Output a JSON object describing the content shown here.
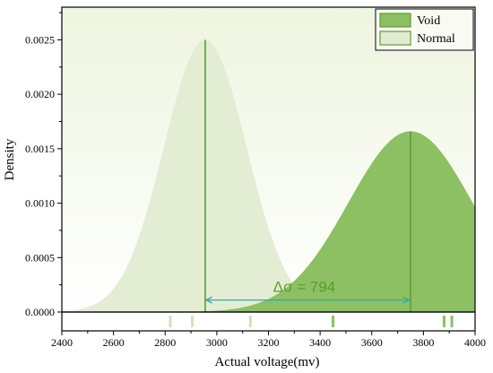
{
  "chart_data": {
    "type": "area",
    "xlabel": "Actual voltage(mv)",
    "ylabel": "Density",
    "xlim": [
      2400,
      4000
    ],
    "ylim": [
      0,
      0.0028
    ],
    "x_ticks": [
      2400,
      2600,
      2800,
      3000,
      3200,
      3400,
      3600,
      3800,
      4000
    ],
    "x_tick_labels": [
      "2400",
      "2600",
      "2800",
      "3000",
      "3200",
      "3400",
      "3600",
      "3800",
      "4000"
    ],
    "y_ticks": [
      0,
      0.0005,
      0.001,
      0.0015,
      0.002,
      0.0025
    ],
    "y_tick_labels": [
      "0.0000",
      "0.0005",
      "0.0010",
      "0.0015",
      "0.0020",
      "0.0025"
    ],
    "legend_position": "top-right",
    "series": [
      {
        "name": "Void",
        "distribution": "normal",
        "mean": 3750,
        "std": 240,
        "peak_density": 0.00166,
        "color": "#8cc063",
        "rug": [
          3450,
          3880,
          3910
        ]
      },
      {
        "name": "Normal",
        "distribution": "normal",
        "mean": 2955,
        "std": 160,
        "peak_density": 0.0025,
        "color": "#dfebcc",
        "rug": [
          2820,
          2905,
          3130
        ]
      }
    ],
    "annotations": [
      {
        "text": "Δσ = 794",
        "from_x": 2955,
        "to_x": 3750,
        "y": 0.00011
      }
    ],
    "colors": {
      "background_gradient_top": "#eef5df",
      "background_gradient_bottom": "#ffffff",
      "void_fill": "#8cc063",
      "normal_fill": "#e2ecd2",
      "vertical_line": "#5aa02c",
      "arrow": "#3fa7a0",
      "annotation_text": "#5aa02c"
    }
  }
}
